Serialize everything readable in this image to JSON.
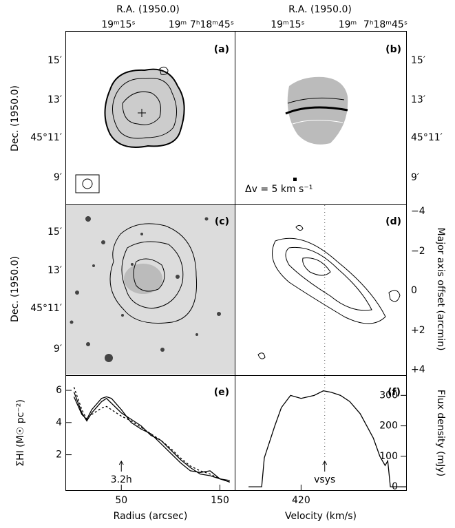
{
  "figure": {
    "top_labels": [
      "R.A. (1950.0)",
      "R.A. (1950.0)"
    ],
    "ra_ticks": [
      "19ᵐ15ˢ",
      "19ᵐ",
      "7ʰ18ᵐ45ˢ"
    ],
    "dec_label": "Dec. (1950.0)",
    "dec_ticks": [
      "15′",
      "13′",
      "45°11′",
      "9′"
    ],
    "panel_labels": [
      "(a)",
      "(b)",
      "(c)",
      "(d)"
    ],
    "velocity_note": "Δv = 5 km s⁻¹",
    "offset_label": "Major axis offset (arcmin)",
    "offset_ticks": [
      "−4",
      "−2",
      "0",
      "+2",
      "+4"
    ]
  },
  "chart_data": [
    {
      "type": "line",
      "title": "(e)",
      "x_label": "Radius (arcsec)",
      "y_label": "ΣHI (M☉ pc⁻²)",
      "x": [
        2,
        10,
        15,
        20,
        30,
        35,
        40,
        50,
        60,
        70,
        80,
        90,
        100,
        110,
        120,
        130,
        140,
        150,
        160
      ],
      "series": [
        {
          "color": "#000000",
          "style": "solid",
          "values": [
            5.9,
            4.6,
            4.1,
            4.6,
            5.3,
            5.5,
            5.2,
            4.6,
            4.2,
            3.8,
            3.2,
            2.9,
            2.3,
            1.7,
            1.2,
            0.8,
            0.7,
            0.5,
            0.3
          ]
        },
        {
          "color": "#000000",
          "style": "solid",
          "values": [
            5.6,
            4.5,
            4.2,
            4.8,
            5.5,
            5.6,
            5.5,
            4.8,
            4.0,
            3.6,
            3.3,
            2.7,
            2.1,
            1.5,
            1.0,
            0.9,
            1.0,
            0.5,
            0.4
          ]
        },
        {
          "color": "#000000",
          "style": "dashed",
          "values": [
            6.2,
            4.8,
            4.2,
            4.5,
            4.9,
            5.0,
            4.8,
            4.4,
            4.1,
            3.7,
            3.3,
            2.9,
            2.4,
            1.8,
            1.3,
            1.0,
            0.8,
            0.5,
            0.3
          ]
        }
      ],
      "xlim": [
        -6,
        165
      ],
      "xticks": [
        50,
        150
      ],
      "ylim": [
        -0.2,
        6.9
      ],
      "yticks": [
        2,
        4,
        6
      ],
      "y_side": "left",
      "annotations": [
        {
          "text": "3.2h",
          "x": 50
        }
      ]
    },
    {
      "type": "line",
      "title": "(f)",
      "x_label": "Velocity (km/s)",
      "y_label": "Flux density (mJy)",
      "x": [
        380,
        390,
        392,
        400,
        405,
        412,
        420,
        430,
        437,
        443,
        450,
        457,
        465,
        470,
        475,
        480,
        484,
        486,
        488,
        500
      ],
      "series": [
        {
          "color": "#000000",
          "style": "solid",
          "values": [
            0,
            0,
            95,
            200,
            260,
            300,
            290,
            300,
            315,
            310,
            300,
            280,
            240,
            200,
            160,
            100,
            70,
            85,
            0,
            0
          ]
        }
      ],
      "xlim": [
        370,
        500
      ],
      "xticks": [
        420
      ],
      "ylim": [
        -11,
        364
      ],
      "yticks": [
        0,
        100,
        200,
        300
      ],
      "y_side": "right",
      "annotations": [
        {
          "text": "vsys",
          "x": 438
        }
      ]
    }
  ]
}
